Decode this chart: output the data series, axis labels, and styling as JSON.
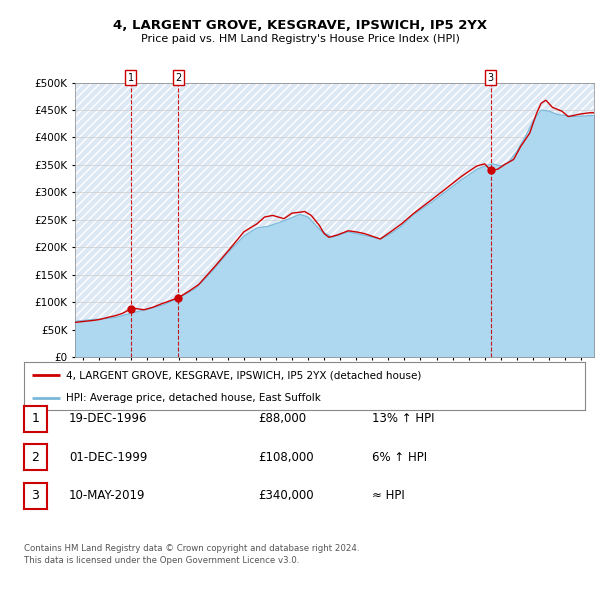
{
  "title": "4, LARGENT GROVE, KESGRAVE, IPSWICH, IP5 2YX",
  "subtitle": "Price paid vs. HM Land Registry's House Price Index (HPI)",
  "legend_line1": "4, LARGENT GROVE, KESGRAVE, IPSWICH, IP5 2YX (detached house)",
  "legend_line2": "HPI: Average price, detached house, East Suffolk",
  "transactions": [
    {
      "num": 1,
      "date_str": "19-DEC-1996",
      "date_x": 1996.97,
      "price": 88000,
      "note": "13% ↑ HPI"
    },
    {
      "num": 2,
      "date_str": "01-DEC-1999",
      "date_x": 1999.92,
      "price": 108000,
      "note": "6% ↑ HPI"
    },
    {
      "num": 3,
      "date_str": "10-MAY-2019",
      "date_x": 2019.36,
      "price": 340000,
      "note": "≈ HPI"
    }
  ],
  "footer_line1": "Contains HM Land Registry data © Crown copyright and database right 2024.",
  "footer_line2": "This data is licensed under the Open Government Licence v3.0.",
  "hpi_color": "#add8f0",
  "hpi_line_color": "#7ab8d8",
  "price_color": "#cc0000",
  "dashed_line_color": "#cc0000",
  "background_color": "#ffffff",
  "hatched_bg": "#dde8f5",
  "ylim": [
    0,
    500000
  ],
  "xlim_start": 1993.5,
  "xlim_end": 2025.8,
  "hpi_breakpoints": [
    [
      1993.5,
      65000
    ],
    [
      1994.5,
      68000
    ],
    [
      1995.5,
      70000
    ],
    [
      1996.0,
      72000
    ],
    [
      1997.0,
      80000
    ],
    [
      1998.0,
      87000
    ],
    [
      1999.0,
      95000
    ],
    [
      2000.0,
      108000
    ],
    [
      2001.0,
      125000
    ],
    [
      2002.0,
      155000
    ],
    [
      2003.0,
      190000
    ],
    [
      2004.0,
      220000
    ],
    [
      2004.8,
      235000
    ],
    [
      2005.5,
      238000
    ],
    [
      2006.5,
      248000
    ],
    [
      2007.5,
      260000
    ],
    [
      2008.0,
      255000
    ],
    [
      2008.8,
      230000
    ],
    [
      2009.5,
      218000
    ],
    [
      2010.5,
      228000
    ],
    [
      2011.5,
      222000
    ],
    [
      2012.5,
      215000
    ],
    [
      2013.0,
      222000
    ],
    [
      2013.8,
      238000
    ],
    [
      2014.5,
      258000
    ],
    [
      2015.5,
      278000
    ],
    [
      2016.5,
      300000
    ],
    [
      2017.5,
      322000
    ],
    [
      2018.5,
      342000
    ],
    [
      2019.0,
      348000
    ],
    [
      2019.5,
      352000
    ],
    [
      2020.0,
      348000
    ],
    [
      2020.5,
      355000
    ],
    [
      2021.0,
      375000
    ],
    [
      2021.5,
      400000
    ],
    [
      2022.0,
      430000
    ],
    [
      2022.5,
      450000
    ],
    [
      2023.0,
      448000
    ],
    [
      2023.5,
      442000
    ],
    [
      2024.0,
      440000
    ],
    [
      2024.5,
      438000
    ],
    [
      2025.5,
      440000
    ]
  ],
  "price_breakpoints": [
    [
      1993.5,
      63000
    ],
    [
      1994.5,
      66000
    ],
    [
      1995.0,
      68000
    ],
    [
      1995.5,
      72000
    ],
    [
      1996.0,
      75000
    ],
    [
      1996.5,
      80000
    ],
    [
      1996.97,
      88000
    ],
    [
      1997.2,
      88500
    ],
    [
      1997.8,
      86000
    ],
    [
      1998.3,
      90000
    ],
    [
      1998.8,
      96000
    ],
    [
      1999.2,
      100000
    ],
    [
      1999.92,
      108000
    ],
    [
      2000.5,
      118000
    ],
    [
      2001.2,
      132000
    ],
    [
      2002.0,
      158000
    ],
    [
      2003.0,
      192000
    ],
    [
      2004.0,
      228000
    ],
    [
      2004.8,
      242000
    ],
    [
      2005.3,
      255000
    ],
    [
      2005.8,
      258000
    ],
    [
      2006.5,
      252000
    ],
    [
      2007.0,
      262000
    ],
    [
      2007.8,
      265000
    ],
    [
      2008.2,
      258000
    ],
    [
      2008.7,
      240000
    ],
    [
      2009.0,
      225000
    ],
    [
      2009.3,
      218000
    ],
    [
      2009.8,
      222000
    ],
    [
      2010.5,
      230000
    ],
    [
      2011.0,
      228000
    ],
    [
      2011.5,
      225000
    ],
    [
      2012.0,
      220000
    ],
    [
      2012.5,
      215000
    ],
    [
      2013.0,
      225000
    ],
    [
      2013.8,
      242000
    ],
    [
      2014.5,
      260000
    ],
    [
      2015.5,
      282000
    ],
    [
      2016.5,
      305000
    ],
    [
      2017.5,
      328000
    ],
    [
      2018.5,
      348000
    ],
    [
      2019.0,
      352000
    ],
    [
      2019.36,
      340000
    ],
    [
      2019.8,
      342000
    ],
    [
      2020.2,
      350000
    ],
    [
      2020.8,
      360000
    ],
    [
      2021.2,
      382000
    ],
    [
      2021.8,
      408000
    ],
    [
      2022.2,
      442000
    ],
    [
      2022.5,
      462000
    ],
    [
      2022.8,
      468000
    ],
    [
      2023.2,
      455000
    ],
    [
      2023.8,
      448000
    ],
    [
      2024.2,
      438000
    ],
    [
      2024.8,
      442000
    ],
    [
      2025.5,
      445000
    ]
  ]
}
